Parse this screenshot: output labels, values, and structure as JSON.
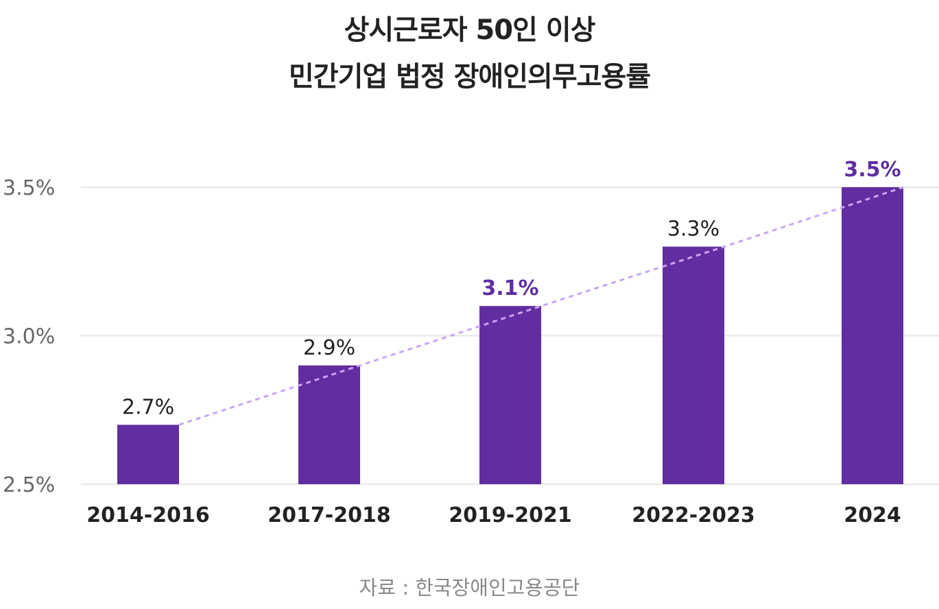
{
  "chart_data": {
    "type": "bar",
    "title_lines": [
      "상시근로자 50인 이상",
      "민간기업 법정 장애인의무고용률"
    ],
    "categories": [
      "2014-2016",
      "2017-2018",
      "2019-2021",
      "2022-2023",
      "2024"
    ],
    "values": [
      2.7,
      2.9,
      3.1,
      3.3,
      3.5
    ],
    "value_labels": [
      "2.7%",
      "2.9%",
      "3.1%",
      "3.3%",
      "3.5%"
    ],
    "highlighted": [
      false,
      false,
      true,
      false,
      true
    ],
    "y_ticks": [
      2.5,
      3.0,
      3.5
    ],
    "y_tick_labels": [
      "2.5%",
      "3.0%",
      "3.5%"
    ],
    "ylim": [
      2.5,
      3.5
    ],
    "xlabel": "",
    "ylabel": "",
    "grid": true,
    "trend_line": "dashed",
    "colors": {
      "bar": "#622da0",
      "highlight_label": "#5e2ea0",
      "normal_label": "#222222",
      "trend_line": "#c9a6f5",
      "grid": "#e6e6e6",
      "tick_label": "#666666",
      "category_label": "#222222"
    }
  },
  "source": "자료 : 한국장애인고용공단"
}
